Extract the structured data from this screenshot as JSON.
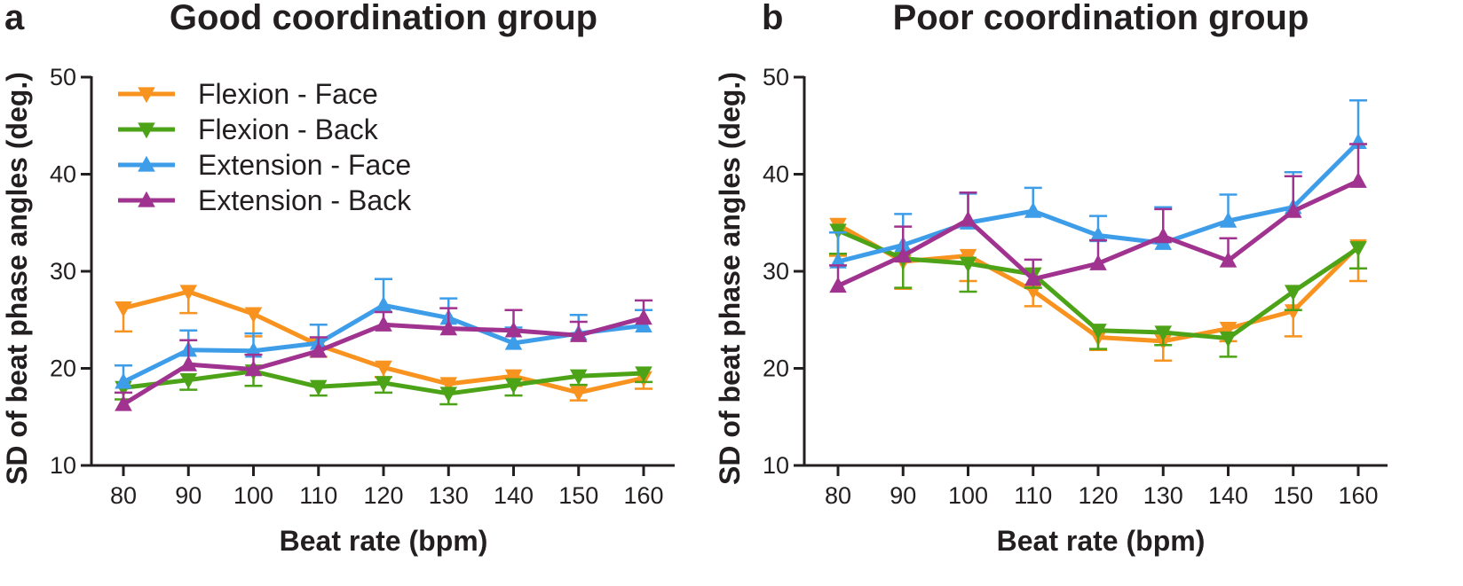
{
  "chart_data": [
    {
      "type": "line",
      "panel_letter": "a",
      "title": "Good coordination group",
      "xlabel": "Beat rate (bpm)",
      "ylabel": "SD of beat phase angles (deg.)",
      "x": [
        80,
        90,
        100,
        110,
        120,
        130,
        140,
        150,
        160
      ],
      "xlim": [
        80,
        160
      ],
      "ylim": [
        10,
        50
      ],
      "yticks": [
        10,
        20,
        30,
        40,
        50
      ],
      "legend": "top-left",
      "series": [
        {
          "name": "Flexion - Face",
          "color": "#f7931e",
          "marker": "triangle-down",
          "values": [
            26.2,
            27.9,
            25.6,
            22.4,
            20.1,
            18.4,
            19.2,
            17.5,
            19.0
          ],
          "errors": [
            2.4,
            2.2,
            2.3,
            1.2,
            1.0,
            0.9,
            1.0,
            0.8,
            1.1
          ]
        },
        {
          "name": "Flexion - Back",
          "color": "#4da317",
          "marker": "triangle-down",
          "values": [
            18.0,
            18.8,
            19.7,
            18.1,
            18.5,
            17.4,
            18.3,
            19.2,
            19.5
          ],
          "errors": [
            1.2,
            1.0,
            1.5,
            0.9,
            1.0,
            1.1,
            1.1,
            0.9,
            0.9
          ]
        },
        {
          "name": "Extension - Face",
          "color": "#3e9de9",
          "marker": "triangle-up",
          "values": [
            18.6,
            21.9,
            21.8,
            22.6,
            26.5,
            25.2,
            22.6,
            23.6,
            24.4
          ],
          "errors": [
            1.7,
            2.0,
            1.8,
            1.9,
            2.7,
            2.0,
            1.6,
            1.9,
            1.6
          ]
        },
        {
          "name": "Extension - Back",
          "color": "#a0338f",
          "marker": "triangle-up",
          "values": [
            16.3,
            20.4,
            19.9,
            21.8,
            24.5,
            24.1,
            23.9,
            23.4,
            25.2
          ],
          "errors": [
            1.2,
            2.5,
            1.5,
            1.4,
            1.3,
            2.1,
            2.1,
            1.4,
            1.8
          ]
        }
      ]
    },
    {
      "type": "line",
      "panel_letter": "b",
      "title": "Poor coordination group",
      "xlabel": "Beat rate (bpm)",
      "ylabel": "SD of beat phase angles (deg.)",
      "x": [
        80,
        90,
        100,
        110,
        120,
        130,
        140,
        150,
        160
      ],
      "xlim": [
        80,
        160
      ],
      "ylim": [
        10,
        50
      ],
      "yticks": [
        10,
        20,
        30,
        40,
        50
      ],
      "series": [
        {
          "name": "Flexion - Face",
          "color": "#f7931e",
          "marker": "triangle-down",
          "values": [
            34.8,
            31.0,
            31.6,
            28.0,
            23.2,
            22.8,
            24.1,
            25.9,
            32.6
          ],
          "errors": [
            3.2,
            2.8,
            2.6,
            1.6,
            1.3,
            2.0,
            1.3,
            2.6,
            3.6
          ]
        },
        {
          "name": "Flexion - Back",
          "color": "#4da317",
          "marker": "triangle-down",
          "values": [
            34.2,
            31.3,
            30.8,
            29.7,
            23.9,
            23.7,
            23.1,
            27.9,
            32.4
          ],
          "errors": [
            2.4,
            3.0,
            2.9,
            1.4,
            1.9,
            1.3,
            1.9,
            1.9,
            2.1
          ]
        },
        {
          "name": "Extension - Face",
          "color": "#3e9de9",
          "marker": "triangle-up",
          "values": [
            31.0,
            32.7,
            35.0,
            36.2,
            33.7,
            32.9,
            35.2,
            36.6,
            43.3
          ],
          "errors": [
            3.0,
            3.2,
            3.0,
            2.4,
            2.0,
            3.7,
            2.7,
            3.6,
            4.3
          ]
        },
        {
          "name": "Extension - Back",
          "color": "#a0338f",
          "marker": "triangle-up",
          "values": [
            28.5,
            31.6,
            35.3,
            29.2,
            30.8,
            33.6,
            31.1,
            36.2,
            39.3
          ],
          "errors": [
            2.1,
            3.0,
            2.8,
            2.0,
            2.4,
            2.8,
            2.3,
            3.6,
            3.8
          ]
        }
      ]
    }
  ]
}
